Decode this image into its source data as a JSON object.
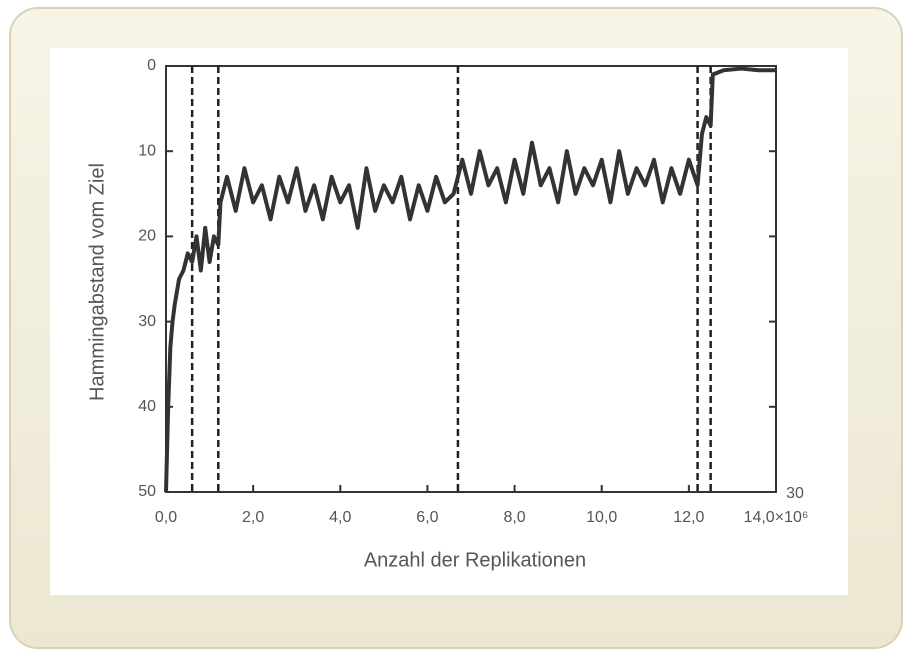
{
  "chart_data": {
    "type": "line",
    "x_label": "Anzahl der Replikationen",
    "y_label": "Hammingabstand vom Ziel",
    "annotation": "30",
    "x": [
      0,
      0.05,
      0.1,
      0.15,
      0.2,
      0.3,
      0.4,
      0.5,
      0.6,
      0.7,
      0.8,
      0.9,
      1.0,
      1.1,
      1.2,
      1.25,
      1.4,
      1.6,
      1.8,
      2.0,
      2.2,
      2.4,
      2.6,
      2.8,
      3.0,
      3.2,
      3.4,
      3.6,
      3.8,
      4.0,
      4.2,
      4.4,
      4.6,
      4.8,
      5.0,
      5.2,
      5.4,
      5.6,
      5.8,
      6.0,
      6.2,
      6.4,
      6.6,
      6.7,
      6.8,
      7.0,
      7.2,
      7.4,
      7.6,
      7.8,
      8.0,
      8.2,
      8.4,
      8.6,
      8.8,
      9.0,
      9.2,
      9.4,
      9.6,
      9.8,
      10.0,
      10.2,
      10.4,
      10.6,
      10.8,
      11.0,
      11.2,
      11.4,
      11.6,
      11.8,
      12.0,
      12.2,
      12.3,
      12.4,
      12.5,
      12.55,
      12.8,
      13.2,
      13.6,
      14.0
    ],
    "series": [
      {
        "color": "#333333",
        "values": [
          50,
          40,
          33,
          30,
          28,
          25,
          24,
          22,
          23,
          20,
          24,
          19,
          23,
          20,
          21,
          16,
          13,
          17,
          12,
          16,
          14,
          18,
          13,
          16,
          12,
          17,
          14,
          18,
          13,
          16,
          14,
          19,
          12,
          17,
          14,
          16,
          13,
          18,
          14,
          17,
          13,
          16,
          15,
          13,
          11,
          15,
          10,
          14,
          12,
          16,
          11,
          15,
          9,
          14,
          12,
          16,
          10,
          15,
          12,
          14,
          11,
          16,
          10,
          15,
          12,
          14,
          11,
          16,
          12,
          15,
          11,
          14,
          8,
          6,
          7,
          1,
          0.5,
          0.3,
          0.5,
          0.5
        ]
      }
    ],
    "vlines": [
      0.6,
      1.2,
      6.7,
      12.2,
      12.5
    ],
    "xlim": [
      0,
      14
    ],
    "xticks": [
      {
        "value": 0,
        "label": "0,0"
      },
      {
        "value": 2,
        "label": "2,0"
      },
      {
        "value": 4,
        "label": "4,0"
      },
      {
        "value": 6,
        "label": "6,0"
      },
      {
        "value": 8,
        "label": "8,0"
      },
      {
        "value": 10,
        "label": "10,0"
      },
      {
        "value": 12,
        "label": "12,0"
      },
      {
        "value": 14,
        "label": "14,0×10⁶"
      }
    ],
    "ylim": [
      0,
      50
    ],
    "yticks": [
      0,
      10,
      20,
      30,
      40,
      50
    ],
    "y_inverted": true
  }
}
